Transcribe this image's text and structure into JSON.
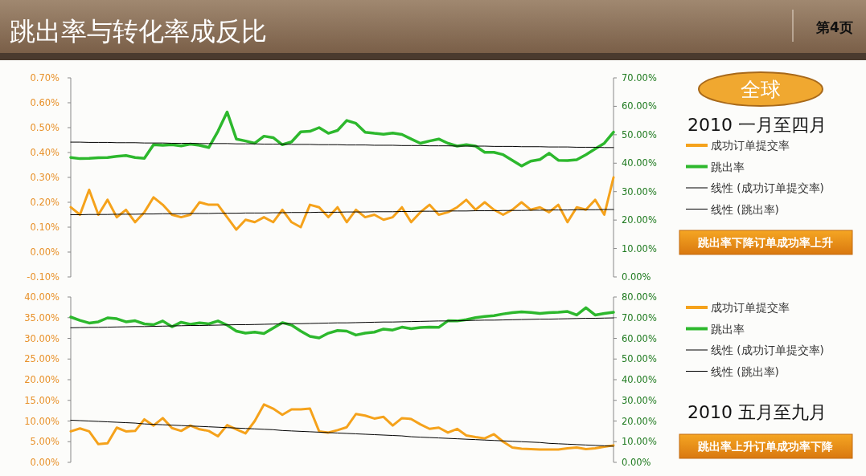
{
  "chart_data": [
    {
      "type": "line",
      "title": "跳出率与转化率成反比",
      "annotations": [
        "第4页",
        "全球",
        "2010 一月至四月",
        "跳出率下降订单成功率上升"
      ],
      "legend": "right",
      "categories": [
        null,
        null,
        null,
        null,
        null,
        null,
        null,
        null,
        null,
        null,
        null,
        null,
        null,
        null,
        null,
        null,
        null,
        null,
        null,
        null,
        null,
        null,
        null,
        null,
        null,
        null,
        null,
        null,
        null,
        null,
        null,
        null,
        null,
        null,
        null,
        null,
        null,
        null,
        null,
        null,
        null,
        null,
        null,
        null,
        null,
        null,
        null,
        null,
        null,
        null,
        null,
        null,
        null,
        null,
        null,
        null,
        null,
        null,
        null,
        null
      ],
      "ylim": [
        -0.1,
        0.7
      ],
      "yticks": [
        {
          "value": -0.1,
          "label": "-0.10%"
        },
        {
          "value": 0,
          "label": "0.00%"
        },
        {
          "value": 0.1,
          "label": "0.10%"
        },
        {
          "value": 0.2,
          "label": "0.20%"
        },
        {
          "value": 0.3,
          "label": "0.30%"
        },
        {
          "value": 0.4,
          "label": "0.40%"
        },
        {
          "value": 0.5,
          "label": "0.50%"
        },
        {
          "value": 0.6,
          "label": "0.60%"
        },
        {
          "value": 0.7,
          "label": "0.70%"
        }
      ],
      "y2lim": [
        0,
        70
      ],
      "y2ticks": [
        {
          "value": 0,
          "label": "0.00%"
        },
        {
          "value": 10,
          "label": "10.00%"
        },
        {
          "value": 20,
          "label": "20.00%"
        },
        {
          "value": 30,
          "label": "30.00%"
        },
        {
          "value": 40,
          "label": "40.00%"
        },
        {
          "value": 50,
          "label": "50.00%"
        },
        {
          "value": 60,
          "label": "60.00%"
        },
        {
          "value": 70,
          "label": "70.00%"
        }
      ],
      "series": [
        {
          "name": "成功订单提交率",
          "color": "#f5a21b",
          "values": [
            0.18,
            0.15,
            0.25,
            0.15,
            0.21,
            0.14,
            0.17,
            0.12,
            0.16,
            0.22,
            0.19,
            0.15,
            0.14,
            0.15,
            0.2,
            0.19,
            0.19,
            0.14,
            0.09,
            0.13,
            0.12,
            0.14,
            0.12,
            0.17,
            0.12,
            0.1,
            0.19,
            0.18,
            0.14,
            0.18,
            0.12,
            0.17,
            0.14,
            0.15,
            0.13,
            0.14,
            0.18,
            0.12,
            0.16,
            0.19,
            0.15,
            0.16,
            0.18,
            0.21,
            0.17,
            0.2,
            0.17,
            0.15,
            0.17,
            0.2,
            0.17,
            0.18,
            0.16,
            0.19,
            0.12,
            0.18,
            0.17,
            0.21,
            0.15,
            0.3
          ]
        },
        {
          "name": "跳出率",
          "color": "#2db82d",
          "axis": "y2",
          "values": [
            42.0,
            41.6,
            41.7,
            41.9,
            42.0,
            42.4,
            42.7,
            42.0,
            41.7,
            46.5,
            46.3,
            46.5,
            46.1,
            46.7,
            46.3,
            45.5,
            51.2,
            58.0,
            48.5,
            47.8,
            47.0,
            49.5,
            49.0,
            46.5,
            47.5,
            51.0,
            51.2,
            52.5,
            50.5,
            51.5,
            55.0,
            54.0,
            50.9,
            50.5,
            50.2,
            50.6,
            50.1,
            48.5,
            47.0,
            47.8,
            48.5,
            47.0,
            46.0,
            46.5,
            46.0,
            43.8,
            43.8,
            43.0,
            41.0,
            39.0,
            40.7,
            41.3,
            43.5,
            41.0,
            40.9,
            41.2,
            43.0,
            45.0,
            47.0,
            50.9
          ]
        },
        {
          "name": "线性 (成功订单提交率)",
          "color": "#000000",
          "values": [
            0.15,
            0.15,
            0.151,
            0.151,
            0.151,
            0.152,
            0.152,
            0.152,
            0.153,
            0.153,
            0.154,
            0.154,
            0.154,
            0.155,
            0.155,
            0.155,
            0.156,
            0.156,
            0.156,
            0.157,
            0.157,
            0.157,
            0.158,
            0.158,
            0.159,
            0.159,
            0.159,
            0.16,
            0.16,
            0.16,
            0.161,
            0.161,
            0.161,
            0.162,
            0.162,
            0.162,
            0.163,
            0.163,
            0.164,
            0.164,
            0.164,
            0.165,
            0.165,
            0.165,
            0.166,
            0.166,
            0.166,
            0.167,
            0.167,
            0.167,
            0.168,
            0.168,
            0.169,
            0.169,
            0.169,
            0.17,
            0.17,
            0.17,
            0.171,
            0.171
          ]
        },
        {
          "name": "线性 (跳出率)",
          "color": "#000000",
          "axis": "y2",
          "values": [
            47.4,
            47.4,
            47.3,
            47.3,
            47.3,
            47.2,
            47.2,
            47.2,
            47.1,
            47.1,
            47.1,
            47.0,
            47.0,
            47.0,
            46.9,
            46.9,
            46.9,
            46.9,
            46.8,
            46.8,
            46.8,
            46.7,
            46.7,
            46.7,
            46.6,
            46.6,
            46.6,
            46.5,
            46.5,
            46.5,
            46.4,
            46.4,
            46.4,
            46.3,
            46.3,
            46.3,
            46.2,
            46.2,
            46.2,
            46.1,
            46.1,
            46.1,
            46.0,
            46.0,
            46.0,
            46.0,
            45.9,
            45.9,
            45.9,
            45.8,
            45.8,
            45.8,
            45.7,
            45.7,
            45.7,
            45.6,
            45.6,
            45.6,
            45.5,
            45.5
          ]
        }
      ]
    },
    {
      "type": "line",
      "annotations": [
        "2010 五月至九月",
        "跳出率上升订单成功率下降"
      ],
      "legend": "right",
      "categories": [
        null,
        null,
        null,
        null,
        null,
        null,
        null,
        null,
        null,
        null,
        null,
        null,
        null,
        null,
        null,
        null,
        null,
        null,
        null,
        null,
        null,
        null,
        null,
        null,
        null,
        null,
        null,
        null,
        null,
        null,
        null,
        null,
        null,
        null,
        null,
        null,
        null,
        null,
        null,
        null,
        null,
        null,
        null,
        null,
        null,
        null,
        null,
        null,
        null,
        null,
        null,
        null,
        null,
        null,
        null,
        null,
        null,
        null,
        null,
        null
      ],
      "ylim": [
        0,
        40
      ],
      "yticks": [
        {
          "value": 0,
          "label": "0.00%"
        },
        {
          "value": 5,
          "label": "5.00%"
        },
        {
          "value": 10,
          "label": "10.00%"
        },
        {
          "value": 15,
          "label": "15.00%"
        },
        {
          "value": 20,
          "label": "20.00%"
        },
        {
          "value": 25,
          "label": "25.00%"
        },
        {
          "value": 30,
          "label": "30.00%"
        },
        {
          "value": 35,
          "label": "35.00%"
        },
        {
          "value": 40,
          "label": "40.00%"
        }
      ],
      "y2lim": [
        0,
        80
      ],
      "y2ticks": [
        {
          "value": 0,
          "label": "0.00%"
        },
        {
          "value": 10,
          "label": "10.00%"
        },
        {
          "value": 20,
          "label": "20.00%"
        },
        {
          "value": 30,
          "label": "30.00%"
        },
        {
          "value": 40,
          "label": "40.00%"
        },
        {
          "value": 50,
          "label": "50.00%"
        },
        {
          "value": 60,
          "label": "60.00%"
        },
        {
          "value": 70,
          "label": "70.00%"
        },
        {
          "value": 80,
          "label": "80.00%"
        }
      ],
      "series": [
        {
          "name": "成功订单提交率",
          "color": "#f5a21b",
          "values": [
            7.5,
            8.2,
            7.5,
            4.4,
            4.6,
            8.4,
            7.5,
            7.6,
            10.4,
            8.9,
            10.7,
            8.3,
            7.6,
            8.9,
            8.0,
            7.6,
            6.3,
            9.0,
            8.0,
            7.0,
            10.0,
            14.0,
            13.0,
            11.5,
            12.8,
            12.8,
            13.0,
            7.5,
            7.2,
            7.8,
            8.5,
            11.7,
            11.3,
            10.6,
            11.0,
            8.9,
            10.7,
            10.5,
            9.2,
            8.1,
            8.4,
            7.2,
            8.1,
            6.5,
            6.1,
            5.8,
            6.8,
            5.0,
            3.6,
            3.3,
            3.2,
            3.1,
            3.1,
            3.1,
            3.4,
            3.6,
            3.2,
            3.4,
            3.8,
            4.1
          ]
        },
        {
          "name": "跳出率",
          "color": "#2db82d",
          "axis": "y2",
          "values": [
            70.3,
            68.7,
            67.4,
            68.0,
            69.9,
            69.5,
            68.0,
            68.5,
            67.0,
            66.6,
            68.4,
            65.6,
            67.8,
            66.8,
            67.5,
            67.0,
            68.4,
            66.4,
            63.5,
            62.5,
            63.0,
            62.3,
            65.0,
            67.6,
            66.4,
            63.5,
            61.0,
            60.2,
            62.5,
            63.8,
            63.5,
            61.6,
            62.5,
            63.0,
            64.5,
            64.0,
            65.4,
            64.7,
            65.2,
            65.4,
            65.3,
            68.5,
            68.4,
            69.0,
            70.0,
            70.6,
            71.0,
            71.8,
            72.4,
            72.8,
            72.5,
            72.0,
            72.4,
            72.6,
            73.0,
            71.3,
            74.8,
            71.3,
            72.0,
            72.6
          ]
        },
        {
          "name": "线性 (成功订单提交率)",
          "color": "#000000",
          "values": [
            10.2,
            10.1,
            10.0,
            9.9,
            9.8,
            9.7,
            9.6,
            9.5,
            9.3,
            9.2,
            9.1,
            9.0,
            8.9,
            8.8,
            8.7,
            8.6,
            8.5,
            8.4,
            8.3,
            8.2,
            8.1,
            8.0,
            7.9,
            7.7,
            7.6,
            7.5,
            7.4,
            7.3,
            7.2,
            7.1,
            7.0,
            6.9,
            6.8,
            6.7,
            6.6,
            6.5,
            6.4,
            6.2,
            6.1,
            6.0,
            5.9,
            5.8,
            5.7,
            5.6,
            5.5,
            5.4,
            5.3,
            5.2,
            5.1,
            5.0,
            4.9,
            4.8,
            4.6,
            4.5,
            4.4,
            4.3,
            4.2,
            4.1,
            4.0,
            3.9
          ]
        },
        {
          "name": "线性 (跳出率)",
          "color": "#000000",
          "axis": "y2",
          "values": [
            65.1,
            65.2,
            65.3,
            65.3,
            65.4,
            65.5,
            65.6,
            65.7,
            65.7,
            65.8,
            65.9,
            66.0,
            66.1,
            66.2,
            66.2,
            66.3,
            66.4,
            66.5,
            66.6,
            66.6,
            66.7,
            66.8,
            66.9,
            67.0,
            67.1,
            67.1,
            67.2,
            67.3,
            67.4,
            67.5,
            67.5,
            67.6,
            67.7,
            67.8,
            67.9,
            67.9,
            68.0,
            68.1,
            68.2,
            68.3,
            68.4,
            68.4,
            68.5,
            68.6,
            68.7,
            68.8,
            68.8,
            68.9,
            69.0,
            69.1,
            69.2,
            69.3,
            69.3,
            69.4,
            69.5,
            69.6,
            69.7,
            69.7,
            69.8,
            69.9
          ]
        }
      ]
    }
  ]
}
